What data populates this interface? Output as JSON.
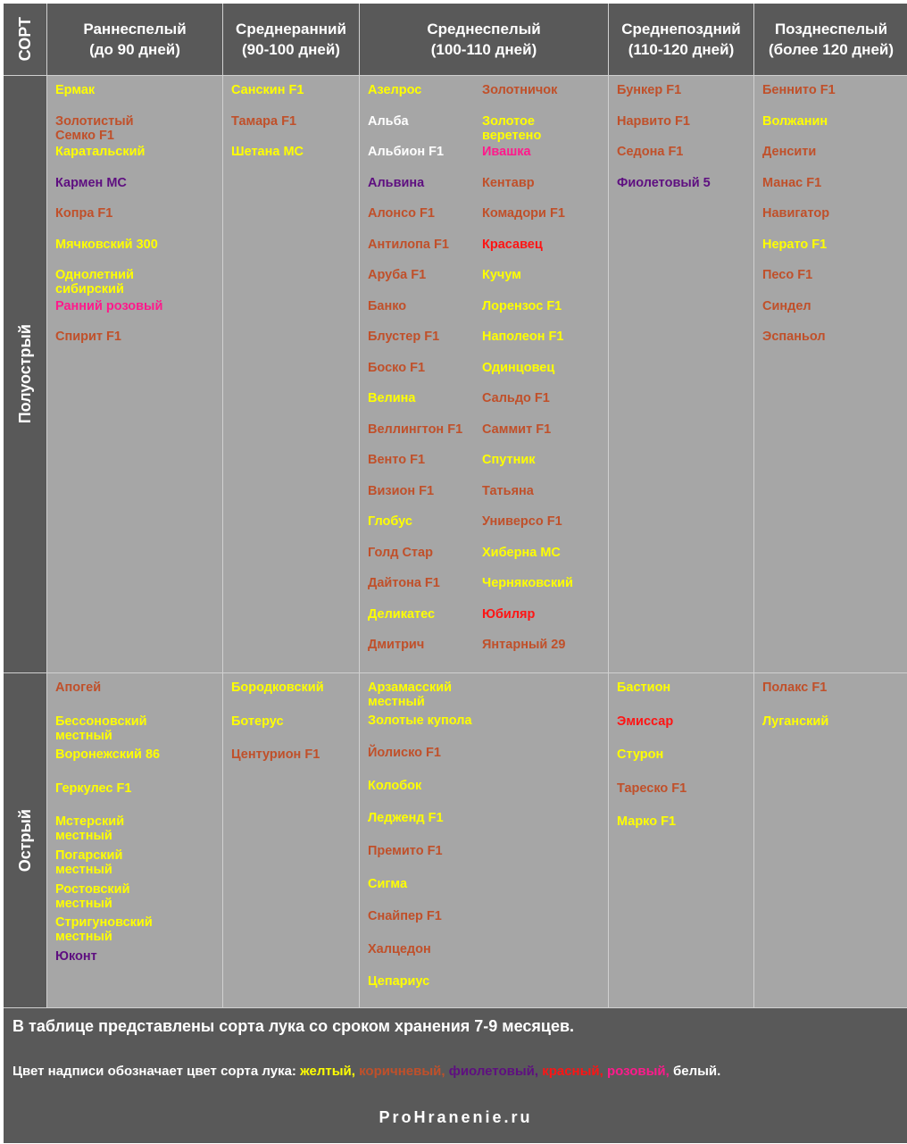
{
  "header": {
    "corner": "СОРТ",
    "columns": [
      {
        "name": "Раннеспелый",
        "period": "(до 90 дней)"
      },
      {
        "name": "Среднеранний",
        "period": "(90-100 дней)"
      },
      {
        "name": "Среднеспелый",
        "period": "(100-110 дней)"
      },
      {
        "name": "Среднепоздний",
        "period": "(110-120 дней)"
      },
      {
        "name": "Позднеспелый",
        "period": "(более 120 дней)"
      }
    ]
  },
  "colors": {
    "yellow": "#ffff00",
    "brown": "#c0502a",
    "purple": "#5e0f80",
    "red": "#ff1414",
    "pink": "#ff1a8c",
    "white": "#ffffff"
  },
  "rows": [
    {
      "label": "Полуострый",
      "cells": [
        [
          [
            {
              "text": "Ермак",
              "color": "yellow"
            },
            {
              "text": "Золотистый Семко F1",
              "color": "brown"
            },
            {
              "text": "Каратальский",
              "color": "yellow"
            },
            {
              "text": "Кармен МС",
              "color": "purple"
            },
            {
              "text": "Копра F1",
              "color": "brown"
            },
            {
              "text": "Мячковский 300",
              "color": "yellow"
            },
            {
              "text": "Однолетний сибирский",
              "color": "yellow"
            },
            {
              "text": "Ранний розовый",
              "color": "pink"
            },
            {
              "text": "Спирит F1",
              "color": "brown"
            }
          ]
        ],
        [
          [
            {
              "text": "Санскин F1",
              "color": "yellow"
            },
            {
              "text": "Тамара F1",
              "color": "brown"
            },
            {
              "text": "Шетана МС",
              "color": "yellow"
            }
          ]
        ],
        [
          [
            {
              "text": "Азелрос",
              "color": "yellow"
            },
            {
              "text": "Альба",
              "color": "white"
            },
            {
              "text": "Альбион F1",
              "color": "white"
            },
            {
              "text": "Альвина",
              "color": "purple"
            },
            {
              "text": "Алонсо F1",
              "color": "brown"
            },
            {
              "text": "Антилопа F1",
              "color": "brown"
            },
            {
              "text": "Аруба F1",
              "color": "brown"
            },
            {
              "text": "Банко",
              "color": "brown"
            },
            {
              "text": "Блустер F1",
              "color": "brown"
            },
            {
              "text": "Боско F1",
              "color": "brown"
            },
            {
              "text": "Велина",
              "color": "yellow"
            },
            {
              "text": "Веллингтон F1",
              "color": "brown"
            },
            {
              "text": "Венто F1",
              "color": "brown"
            },
            {
              "text": "Визион F1",
              "color": "brown"
            },
            {
              "text": "Глобус",
              "color": "yellow"
            },
            {
              "text": "Голд Стар",
              "color": "brown"
            },
            {
              "text": "Дайтона F1",
              "color": "brown"
            },
            {
              "text": "Деликатес",
              "color": "yellow"
            },
            {
              "text": "Дмитрич",
              "color": "brown"
            }
          ],
          [
            {
              "text": "Золотничок",
              "color": "brown"
            },
            {
              "text": "Золотое веретено",
              "color": "yellow"
            },
            {
              "text": "Ивашка",
              "color": "pink"
            },
            {
              "text": "Кентавр",
              "color": "brown"
            },
            {
              "text": "Комадори F1",
              "color": "brown"
            },
            {
              "text": "Красавец",
              "color": "red"
            },
            {
              "text": "Кучум",
              "color": "yellow"
            },
            {
              "text": "Лорензос F1",
              "color": "yellow"
            },
            {
              "text": "Наполеон F1",
              "color": "yellow"
            },
            {
              "text": "Одинцовец",
              "color": "yellow"
            },
            {
              "text": "Сальдо F1",
              "color": "brown"
            },
            {
              "text": "Саммит F1",
              "color": "brown"
            },
            {
              "text": "Спутник",
              "color": "yellow"
            },
            {
              "text": "Татьяна",
              "color": "brown"
            },
            {
              "text": "Универсо F1",
              "color": "brown"
            },
            {
              "text": "Хиберна МС",
              "color": "yellow"
            },
            {
              "text": "Черняковский",
              "color": "yellow"
            },
            {
              "text": "Юбиляр",
              "color": "red"
            },
            {
              "text": "Янтарный 29",
              "color": "brown"
            }
          ]
        ],
        [
          [
            {
              "text": "Бункер F1",
              "color": "brown"
            },
            {
              "text": "Нарвито F1",
              "color": "brown"
            },
            {
              "text": "Седона F1",
              "color": "brown"
            },
            {
              "text": "Фиолетовый 5",
              "color": "purple"
            }
          ]
        ],
        [
          [
            {
              "text": "Беннито F1",
              "color": "brown"
            },
            {
              "text": "Волжанин",
              "color": "yellow"
            },
            {
              "text": "Денсити",
              "color": "brown"
            },
            {
              "text": "Манас F1",
              "color": "brown"
            },
            {
              "text": "Навигатор",
              "color": "brown"
            },
            {
              "text": "Нерато F1",
              "color": "yellow"
            },
            {
              "text": "Песо F1",
              "color": "brown"
            },
            {
              "text": "Синдел",
              "color": "brown"
            },
            {
              "text": "Эспаньол",
              "color": "brown"
            }
          ]
        ]
      ]
    },
    {
      "label": "Острый",
      "cells": [
        [
          [
            {
              "text": "Апогей",
              "color": "brown"
            },
            {
              "text": "Бессоновский местный",
              "color": "yellow"
            },
            {
              "text": "Воронежский 86",
              "color": "yellow"
            },
            {
              "text": "Геркулес F1",
              "color": "yellow"
            },
            {
              "text": "Мстерский местный",
              "color": "yellow"
            },
            {
              "text": "Погарский местный",
              "color": "yellow"
            },
            {
              "text": "Ростовский местный",
              "color": "yellow"
            },
            {
              "text": "Стригуновский местный",
              "color": "yellow"
            },
            {
              "text": "Юконт",
              "color": "purple"
            }
          ]
        ],
        [
          [
            {
              "text": "Бородковский",
              "color": "yellow"
            },
            {
              "text": "Ботерус",
              "color": "yellow"
            },
            {
              "text": "Центурион F1",
              "color": "brown"
            }
          ]
        ],
        [
          [
            {
              "text": "Арзамасский местный",
              "color": "yellow"
            },
            {
              "text": "Золотые купола",
              "color": "yellow"
            },
            {
              "text": "Йолиско F1",
              "color": "brown"
            },
            {
              "text": "Колобок",
              "color": "yellow"
            },
            {
              "text": "Ледженд F1",
              "color": "yellow"
            },
            {
              "text": "Премито F1",
              "color": "brown"
            },
            {
              "text": "Сигма",
              "color": "yellow"
            },
            {
              "text": "Снайпер F1",
              "color": "brown"
            },
            {
              "text": "Халцедон",
              "color": "brown"
            },
            {
              "text": "Цепариус",
              "color": "yellow"
            }
          ]
        ],
        [
          [
            {
              "text": "Бастион",
              "color": "yellow"
            },
            {
              "text": "Эмиссар",
              "color": "red"
            },
            {
              "text": "Стурон",
              "color": "yellow"
            },
            {
              "text": "Тареско F1",
              "color": "brown"
            },
            {
              "text": "Марко F1",
              "color": "yellow"
            }
          ]
        ],
        [
          [
            {
              "text": "Полакс F1",
              "color": "brown"
            },
            {
              "text": "Луганский",
              "color": "yellow"
            }
          ]
        ]
      ]
    }
  ],
  "footer": {
    "note": "В таблице представлены сорта лука со сроком хранения 7-9 месяцев.",
    "legend_intro": "Цвет надписи обозначает цвет сорта лука:",
    "legend": [
      {
        "text": "желтый,",
        "color": "yellow"
      },
      {
        "text": "коричневый,",
        "color": "brown"
      },
      {
        "text": "фиолетовый,",
        "color": "purple"
      },
      {
        "text": "красный,",
        "color": "red"
      },
      {
        "text": "розовый,",
        "color": "pink"
      },
      {
        "text": "белый.",
        "color": "white"
      }
    ],
    "site": "ProHranenie.ru"
  }
}
